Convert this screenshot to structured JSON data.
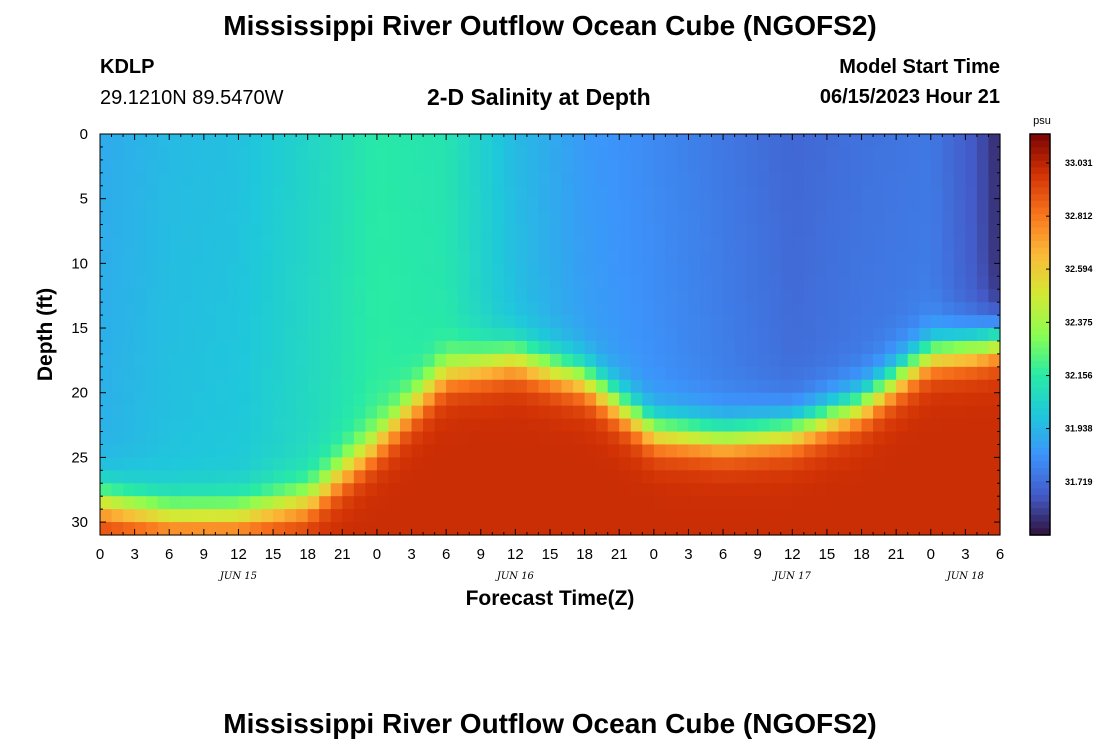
{
  "header": {
    "title": "Mississippi River Outflow Ocean Cube (NGOFS2)",
    "station": "KDLP",
    "coords": "29.1210N  89.5470W",
    "subtitle": "2-D Salinity at Depth",
    "model_start_label": "Model Start Time",
    "model_start_value": "06/15/2023 Hour 21"
  },
  "footer": {
    "title": "Mississippi River Outflow Ocean Cube (NGOFS2)"
  },
  "chart_data": {
    "type": "heatmap",
    "title": "2-D Salinity at Depth",
    "xlabel": "Forecast Time(Z)",
    "ylabel": "Depth (ft)",
    "x_tick_labels": [
      "0",
      "3",
      "6",
      "9",
      "12",
      "15",
      "18",
      "21",
      "0",
      "3",
      "6",
      "9",
      "12",
      "15",
      "18",
      "21",
      "0",
      "3",
      "6",
      "9",
      "12",
      "15",
      "18",
      "21",
      "0",
      "3",
      "6"
    ],
    "x_range_hours": [
      0,
      78
    ],
    "day_labels": [
      {
        "label": "JUN 15",
        "hour": 12
      },
      {
        "label": "JUN 16",
        "hour": 36
      },
      {
        "label": "JUN 17",
        "hour": 60
      },
      {
        "label": "JUN 18",
        "hour": 75
      }
    ],
    "y_ticks": [
      0,
      5,
      10,
      15,
      20,
      25,
      30
    ],
    "y_range": [
      0,
      31
    ],
    "y_reversed": true,
    "colorbar": {
      "unit": "psu",
      "min": 31.5,
      "max": 33.15,
      "tick_values": [
        33.031,
        32.812,
        32.594,
        32.375,
        32.156,
        31.938,
        31.719
      ],
      "tick_labels": [
        "33.031",
        "32.812",
        "32.594",
        "32.375",
        "32.156",
        "31.938",
        "31.719"
      ]
    },
    "x_hours": [
      0,
      6,
      12,
      18,
      24,
      30,
      36,
      42,
      48,
      54,
      60,
      66,
      72,
      76,
      78
    ],
    "bottom_layer_top_depth_ft": [
      28.5,
      29.5,
      29.5,
      28.5,
      24,
      18.5,
      17.5,
      19,
      23,
      23.5,
      23,
      21,
      17,
      16.5,
      16
    ],
    "upper_salinity_psu": [
      31.9,
      31.95,
      31.97,
      32.05,
      32.15,
      32.12,
      31.95,
      31.85,
      31.8,
      31.75,
      31.7,
      31.73,
      31.75,
      31.65,
      31.55
    ],
    "bottom_salinity_psu": 33.0
  }
}
